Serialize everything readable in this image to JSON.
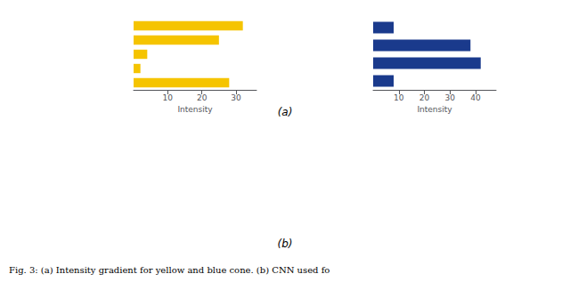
{
  "chart_data": [
    {
      "type": "bar",
      "orientation": "horizontal",
      "categories": [
        null,
        null,
        null,
        null,
        null
      ],
      "values": [
        28,
        2,
        4,
        25,
        32
      ],
      "color": "#F5C400",
      "xlabel": "Intensity",
      "xlim": [
        0,
        36
      ],
      "xticks": [
        10,
        20,
        30
      ],
      "grid": false,
      "tick_labels": "x"
    },
    {
      "type": "bar",
      "orientation": "horizontal",
      "categories": [
        null,
        null,
        null,
        null
      ],
      "values": [
        8,
        42,
        38,
        8
      ],
      "color": "#1A3A8C",
      "xlabel": "Intensity",
      "xlim": [
        0,
        48
      ],
      "xticks": [
        10,
        20,
        30,
        40
      ],
      "grid": false,
      "tick_labels": "x"
    }
  ],
  "annotations": [
    "(a)",
    "(b)"
  ],
  "caption": "Fig. 3: (a) Intensity gradient for yellow and blue cone. (b) CNN used fo"
}
